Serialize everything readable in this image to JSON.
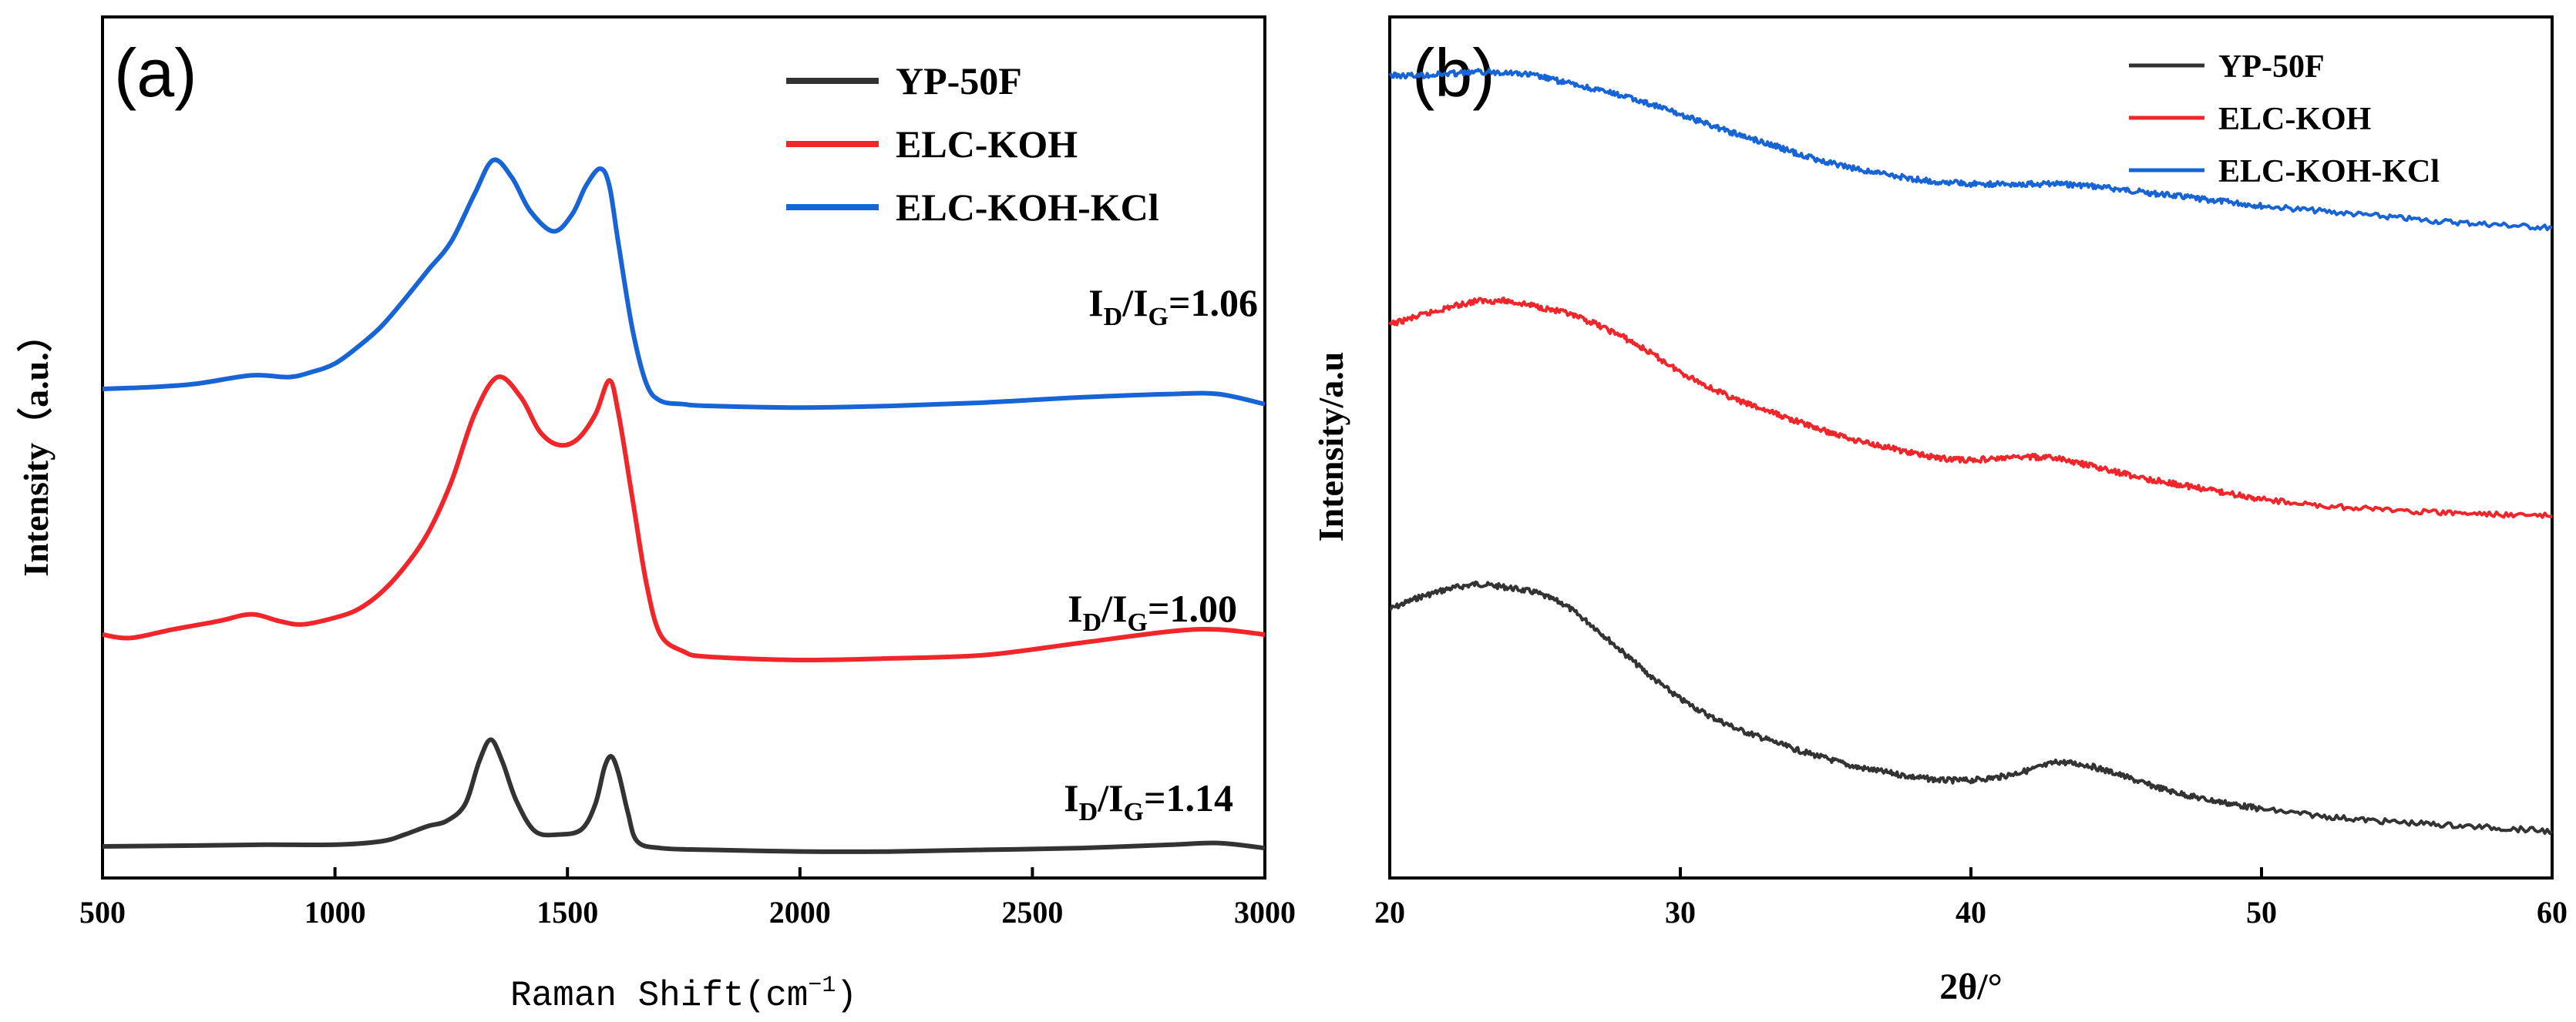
{
  "chart_data": [
    {
      "type": "line",
      "panel_label": "(a)",
      "xlabel": "Raman Shift(cm",
      "xlabel_unit_sup": "−1",
      "xlabel_close": ")",
      "ylabel": "Intensity（a.u.）",
      "xlim": [
        500,
        3000
      ],
      "xticks": [
        "500",
        "1000",
        "1500",
        "2000",
        "2500",
        "3000"
      ],
      "xtick_values": [
        500,
        1000,
        1500,
        2000,
        2500,
        3000
      ],
      "legend_position": "top-right",
      "annotations": [
        {
          "name": "ratio-elc-koh-kcl",
          "pre": "I",
          "sub1": "D",
          "mid": "/I",
          "sub2": "G",
          "post": "=1.06",
          "series": "ELC-KOH-KCl"
        },
        {
          "name": "ratio-elc-koh",
          "pre": "I",
          "sub1": "D",
          "mid": "/I",
          "sub2": "G",
          "post": "=1.00",
          "series": "ELC-KOH"
        },
        {
          "name": "ratio-yp-50f",
          "pre": "I",
          "sub1": "D",
          "mid": "/I",
          "sub2": "G",
          "post": "=1.14",
          "series": "YP-50F"
        }
      ],
      "series": [
        {
          "name": "YP-50F",
          "color": "#333333",
          "x": [
            500,
            700,
            850,
            1000,
            1100,
            1150,
            1200,
            1240,
            1280,
            1310,
            1335,
            1360,
            1390,
            1430,
            1480,
            1530,
            1560,
            1580,
            1595,
            1610,
            1630,
            1650,
            1700,
            1800,
            2000,
            2200,
            2400,
            2600,
            2800,
            2900,
            3000
          ],
          "y": [
            0.05,
            0.055,
            0.06,
            0.06,
            0.08,
            0.12,
            0.17,
            0.2,
            0.3,
            0.55,
            0.68,
            0.55,
            0.32,
            0.14,
            0.12,
            0.15,
            0.3,
            0.52,
            0.58,
            0.48,
            0.25,
            0.08,
            0.04,
            0.03,
            0.02,
            0.02,
            0.03,
            0.04,
            0.06,
            0.07,
            0.04
          ]
        },
        {
          "name": "ELC-KOH",
          "color": "#f0262b",
          "x": [
            500,
            560,
            650,
            750,
            820,
            880,
            930,
            1000,
            1050,
            1100,
            1150,
            1200,
            1250,
            1300,
            1350,
            1400,
            1440,
            1480,
            1520,
            1560,
            1590,
            1610,
            1640,
            1670,
            1700,
            1750,
            1800,
            2000,
            2200,
            2400,
            2600,
            2800,
            2900,
            3000
          ],
          "y": [
            1.3,
            1.28,
            1.33,
            1.38,
            1.42,
            1.38,
            1.36,
            1.4,
            1.45,
            1.55,
            1.7,
            1.9,
            2.2,
            2.6,
            2.82,
            2.7,
            2.5,
            2.42,
            2.45,
            2.6,
            2.8,
            2.6,
            2.1,
            1.6,
            1.3,
            1.2,
            1.17,
            1.15,
            1.16,
            1.18,
            1.25,
            1.32,
            1.33,
            1.3
          ]
        },
        {
          "name": "ELC-KOH-KCl",
          "color": "#1764d6",
          "x": [
            500,
            600,
            700,
            820,
            900,
            950,
            1000,
            1050,
            1100,
            1150,
            1200,
            1250,
            1300,
            1340,
            1380,
            1420,
            1470,
            1510,
            1540,
            1570,
            1590,
            1610,
            1640,
            1670,
            1700,
            1750,
            1800,
            2000,
            2200,
            2400,
            2600,
            2800,
            2900,
            3000
          ],
          "y": [
            2.75,
            2.76,
            2.78,
            2.83,
            2.82,
            2.85,
            2.9,
            3.0,
            3.12,
            3.28,
            3.45,
            3.62,
            3.9,
            4.1,
            4.0,
            3.8,
            3.68,
            3.78,
            3.95,
            4.05,
            3.95,
            3.6,
            3.1,
            2.78,
            2.68,
            2.66,
            2.65,
            2.64,
            2.65,
            2.67,
            2.7,
            2.72,
            2.72,
            2.66
          ]
        }
      ]
    },
    {
      "type": "line",
      "panel_label": "(b)",
      "xlabel": "2θ/°",
      "ylabel": "Intensity/a.u",
      "xlim": [
        20,
        60
      ],
      "xticks": [
        "20",
        "30",
        "40",
        "50",
        "60"
      ],
      "xtick_values": [
        20,
        30,
        40,
        50,
        60
      ],
      "legend_position": "top-right",
      "series": [
        {
          "name": "YP-50F",
          "color": "#333333",
          "x": [
            20,
            21,
            22,
            23,
            24,
            25,
            26,
            27,
            28,
            29,
            30,
            31,
            32,
            33,
            34,
            35,
            36,
            37,
            38,
            39,
            40,
            41,
            42,
            43,
            44,
            45,
            46,
            47,
            48,
            49,
            50,
            52,
            54,
            56,
            58,
            60
          ],
          "y": [
            1.45,
            1.52,
            1.57,
            1.6,
            1.58,
            1.55,
            1.48,
            1.35,
            1.2,
            1.05,
            0.92,
            0.82,
            0.74,
            0.68,
            0.62,
            0.57,
            0.52,
            0.49,
            0.46,
            0.44,
            0.44,
            0.46,
            0.5,
            0.55,
            0.53,
            0.48,
            0.42,
            0.37,
            0.33,
            0.3,
            0.27,
            0.23,
            0.2,
            0.18,
            0.16,
            0.14
          ]
        },
        {
          "name": "ELC-KOH",
          "color": "#f0262b",
          "x": [
            20,
            21,
            22,
            23,
            24,
            25,
            26,
            27,
            28,
            29,
            30,
            31,
            32,
            33,
            34,
            35,
            36,
            37,
            38,
            39,
            40,
            41,
            42,
            43,
            44,
            45,
            46,
            47,
            48,
            49,
            50,
            52,
            54,
            56,
            58,
            60
          ],
          "y": [
            3.13,
            3.18,
            3.23,
            3.27,
            3.27,
            3.24,
            3.2,
            3.14,
            3.06,
            2.96,
            2.85,
            2.76,
            2.68,
            2.62,
            2.56,
            2.5,
            2.45,
            2.41,
            2.37,
            2.34,
            2.33,
            2.34,
            2.35,
            2.34,
            2.3,
            2.26,
            2.22,
            2.19,
            2.16,
            2.13,
            2.1,
            2.06,
            2.04,
            2.02,
            2.01,
            2.0
          ]
        },
        {
          "name": "ELC-KOH-KCl",
          "color": "#1764d6",
          "x": [
            20,
            21,
            22,
            23,
            24,
            25,
            26,
            27,
            28,
            29,
            30,
            31,
            32,
            33,
            34,
            35,
            36,
            37,
            38,
            39,
            40,
            41,
            42,
            43,
            44,
            45,
            46,
            47,
            48,
            49,
            50,
            52,
            54,
            56,
            58,
            60
          ],
          "y": [
            4.6,
            4.6,
            4.61,
            4.62,
            4.62,
            4.6,
            4.56,
            4.52,
            4.48,
            4.43,
            4.37,
            4.31,
            4.25,
            4.2,
            4.14,
            4.09,
            4.05,
            4.02,
            3.99,
            3.97,
            3.96,
            3.96,
            3.96,
            3.96,
            3.95,
            3.93,
            3.91,
            3.89,
            3.87,
            3.85,
            3.83,
            3.8,
            3.77,
            3.74,
            3.72,
            3.7
          ]
        }
      ]
    }
  ]
}
